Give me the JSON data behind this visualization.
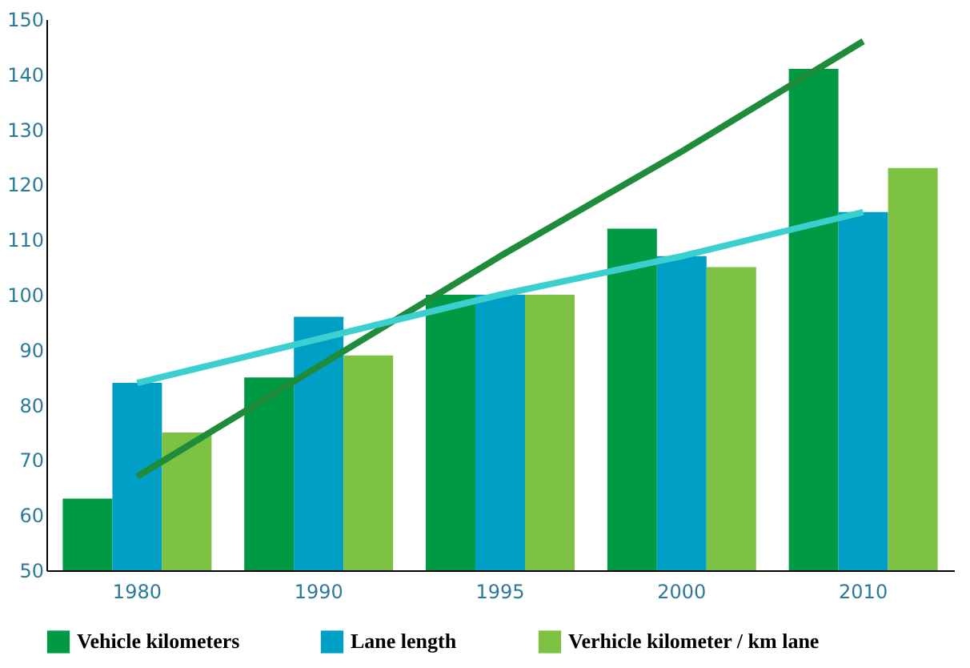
{
  "chart_data": {
    "type": "bar",
    "categories": [
      "1980",
      "1990",
      "1995",
      "2000",
      "2010"
    ],
    "series": [
      {
        "name": "Vehicle kilometers",
        "color": "#009a44",
        "values": [
          63,
          85,
          100,
          112,
          141
        ]
      },
      {
        "name": "Lane length",
        "color": "#00a0c6",
        "values": [
          84,
          96,
          100,
          107,
          115
        ]
      },
      {
        "name": "Verhicle kilometer / km lane",
        "color": "#7dc242",
        "values": [
          75,
          89,
          100,
          105,
          123
        ]
      },
      {
        "type": "line",
        "color": "#1e8c3a",
        "values": [
          67,
          87,
          107,
          126,
          146
        ]
      },
      {
        "type": "line",
        "color": "#3ccfcf",
        "values": [
          84,
          92,
          100,
          107,
          115
        ]
      }
    ],
    "ylim": [
      50,
      150
    ],
    "yticks": [
      50,
      60,
      70,
      80,
      90,
      100,
      110,
      120,
      130,
      140,
      150
    ],
    "grid": false,
    "legend": "bottom",
    "marker": "none",
    "line_style": "solid"
  }
}
